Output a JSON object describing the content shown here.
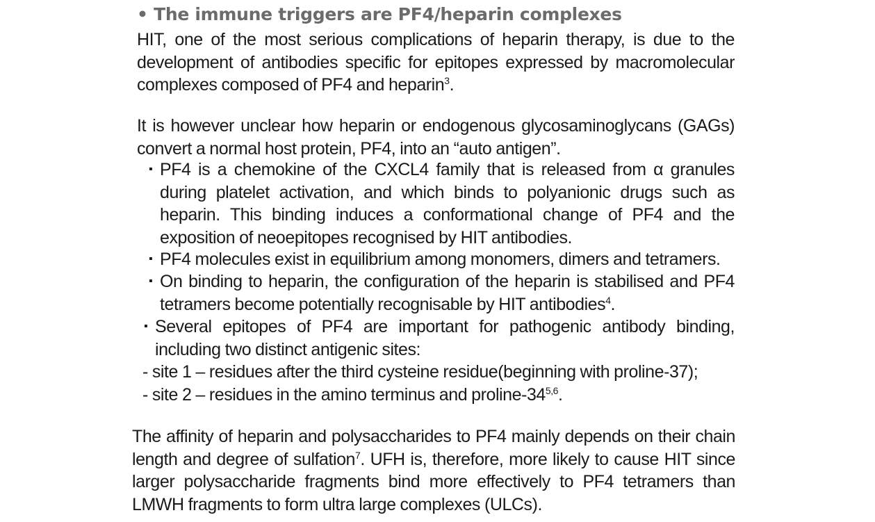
{
  "heading": "• The immune triggers are PF4/heparin complexes",
  "paragraphs": {
    "p1": "HIT, one of the most serious complications of heparin therapy, is due to the development of antibodies specific for epitopes expressed by macromolecular complexes composed of PF4 and heparin",
    "p1_ref": "3",
    "p1_end": ".",
    "p2": "It is however unclear how heparin or endogenous glycosaminoglycans (GAGs) convert a normal host protein, PF4, into an “auto antigen”.",
    "p3a": "The affinity of heparin and polysaccharides to PF4 mainly depends on their chain length and degree of sulfation",
    "p3_ref": "7",
    "p3b": ". UFH is, therefore, more likely to cause HIT since larger polysaccharide fragments bind more effectively to PF4 tetramers than LMWH fragments to form ultra large complexes (ULCs)."
  },
  "bullet_marker": "▪",
  "bullets": {
    "b1": "PF4 is a chemokine of the CXCL4 family that is released from α granules during platelet activation, and which binds to polyanionic drugs such as heparin. This binding induces a conformational change of PF4 and the exposition of neoepitopes recognised by HIT antibodies.",
    "b2": "PF4 molecules exist in equilibrium among monomers, dimers and tetramers.",
    "b3": "On binding to heparin, the configuration of the heparin is stabilised and PF4 tetramers become potentially recognisable by HIT antibodies",
    "b3_ref": "4",
    "b3_end": ".",
    "b4": "Several epitopes of PF4 are important for pathogenic antibody binding, including two distinct antigenic sites:"
  },
  "sites": {
    "s1": "- site 1 – residues after the third cysteine residue(beginning with proline-37);",
    "s2": "- site 2 – residues in the amino terminus and proline-34",
    "s2_ref": "5,6",
    "s2_end": "."
  }
}
